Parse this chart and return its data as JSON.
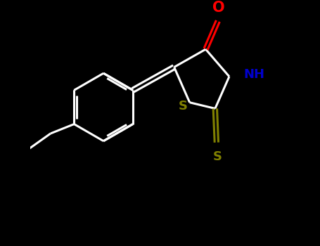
{
  "bg_color": "#000000",
  "bond_color": "#ffffff",
  "O_color": "#ff0000",
  "N_color": "#0000cd",
  "S_color": "#808000",
  "bond_width": 2.2,
  "fig_width": 4.55,
  "fig_height": 3.5,
  "dpi": 100,
  "xlim": [
    -0.5,
    5.0
  ],
  "ylim": [
    -2.5,
    2.5
  ]
}
